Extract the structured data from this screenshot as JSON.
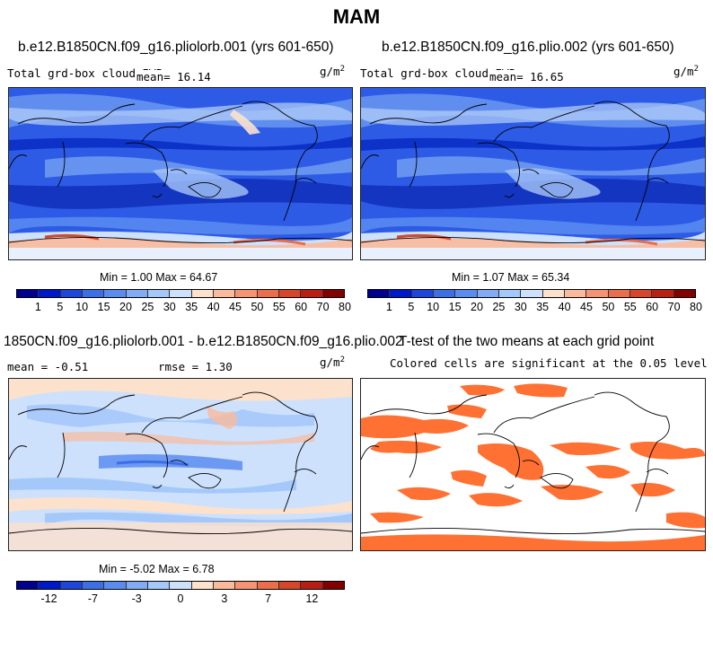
{
  "figure_title": "MAM",
  "panels": {
    "p1": {
      "title": "b.e12.B1850CN.f09_g16.pliolorb.001 (yrs 601-650)",
      "left_label": "Total grd-box cloud IWP",
      "mean_label": "mean=  16.14",
      "units_base": "g/m",
      "units_exp": "2",
      "minmax": "Min =   1.00 Max =  64.67"
    },
    "p2": {
      "title": "b.e12.B1850CN.f09_g16.plio.002 (yrs 601-650)",
      "left_label": "Total grd-box cloud IWP",
      "mean_label": "mean=  16.65",
      "units_base": "g/m",
      "units_exp": "2",
      "minmax": "Min =   1.07 Max =  65.34"
    },
    "p3": {
      "title": "1850CN.f09_g16.pliolorb.001 - b.e12.B1850CN.f09_g16.plio.002",
      "mean_label": "mean =  -0.51",
      "rmse_label": "rmse =    1.30",
      "units_base": "g/m",
      "units_exp": "2",
      "minmax": "Min =  -5.02 Max =   6.78"
    },
    "p4": {
      "title": "T-test of the two means at each grid point",
      "subtitle": "Colored cells are significant at the 0.05 level"
    }
  },
  "colorbars": {
    "abs": {
      "colors": [
        "#00008e",
        "#0019c8",
        "#1e46dc",
        "#3c6ee6",
        "#5a8cf0",
        "#82aaf5",
        "#a5c8fa",
        "#cde1fc",
        "#fce1cd",
        "#faba9b",
        "#f59373",
        "#eb6e4b",
        "#d74628",
        "#b91e14",
        "#820000"
      ],
      "labels": [
        "1",
        "5",
        "10",
        "15",
        "20",
        "25",
        "30",
        "35",
        "40",
        "45",
        "50",
        "55",
        "60",
        "70",
        "80"
      ]
    },
    "diff": {
      "colors": [
        "#00008e",
        "#0019c8",
        "#1e46dc",
        "#3c6ee6",
        "#5a8cf0",
        "#82aaf5",
        "#a5c8fa",
        "#cde1fc",
        "#fce1cd",
        "#faba9b",
        "#f59373",
        "#eb6e4b",
        "#d74628",
        "#b91e14",
        "#820000"
      ],
      "labels": [
        "-12",
        "-7",
        "-3",
        "0",
        "3",
        "7",
        "12"
      ]
    }
  },
  "chart_data": [
    {
      "type": "heatmap",
      "title": "b.e12.B1850CN.f09_g16.pliolorb.001 (yrs 601-650)",
      "variable": "Total grd-box cloud IWP",
      "units": "g/m^2",
      "mean": 16.14,
      "min": 1.0,
      "max": 64.67
    },
    {
      "type": "heatmap",
      "title": "b.e12.B1850CN.f09_g16.plio.002 (yrs 601-650)",
      "variable": "Total grd-box cloud IWP",
      "units": "g/m^2",
      "mean": 16.65,
      "min": 1.07,
      "max": 65.34
    },
    {
      "type": "heatmap",
      "title": "1850CN.f09_g16.pliolorb.001 - b.e12.B1850CN.f09_g16.plio.002",
      "units": "g/m^2",
      "mean": -0.51,
      "rmse": 1.3,
      "min": -5.02,
      "max": 6.78
    },
    {
      "type": "heatmap",
      "title": "T-test of the two means at each grid point",
      "note": "Colored cells are significant at the 0.05 level",
      "significant_color": "#ff7033"
    }
  ]
}
